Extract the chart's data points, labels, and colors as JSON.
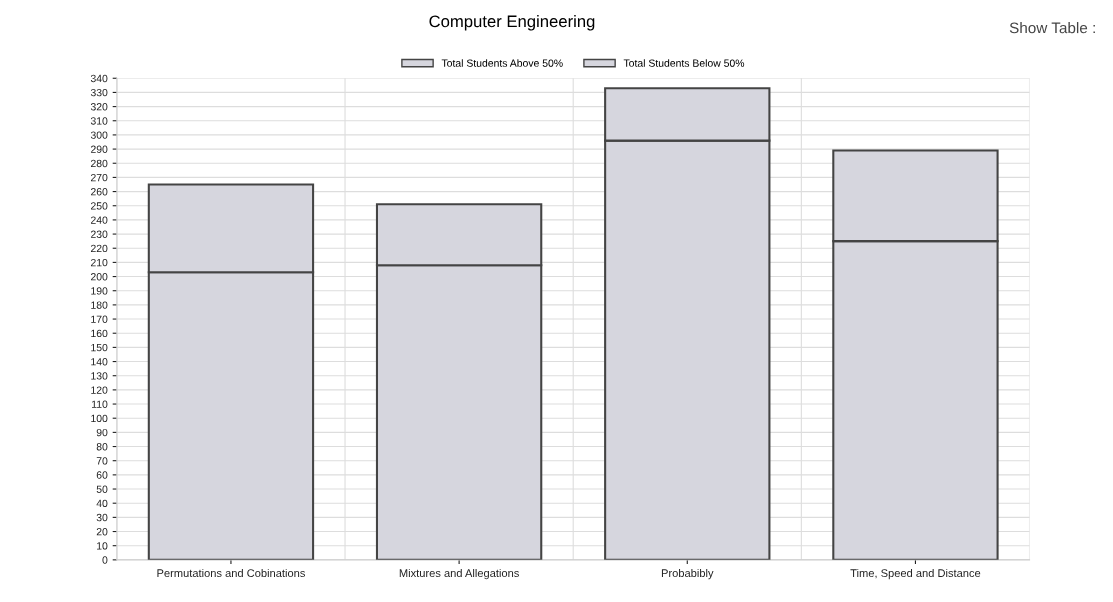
{
  "chart_data": {
    "type": "bar",
    "title": "Computer Engineering",
    "stacked": true,
    "categories": [
      "Permutations and Cobinations",
      "Mixtures and Allegations",
      "Probabibly",
      "Time, Speed and Distance"
    ],
    "series": [
      {
        "name": "Total Students Above 50%",
        "color": "#d6d6de",
        "values": [
          203,
          208,
          296,
          225
        ]
      },
      {
        "name": "Total Students Below 50%",
        "color": "#d6d6de",
        "values": [
          62,
          43,
          37,
          64
        ]
      }
    ],
    "ylim": [
      0,
      340
    ],
    "yticks": [
      0,
      10,
      20,
      30,
      40,
      50,
      60,
      70,
      80,
      90,
      100,
      110,
      120,
      130,
      140,
      150,
      160,
      170,
      180,
      190,
      200,
      210,
      220,
      230,
      240,
      250,
      260,
      270,
      280,
      290,
      300,
      310,
      320,
      330,
      340
    ],
    "grid": true,
    "legend": "top",
    "annotations": [
      "Show Table :"
    ]
  }
}
